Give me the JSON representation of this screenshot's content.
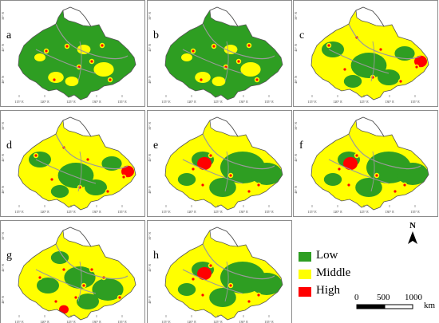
{
  "panels": [
    {
      "letter": "a",
      "scheme": "low"
    },
    {
      "letter": "b",
      "scheme": "low"
    },
    {
      "letter": "c",
      "scheme": "mid"
    },
    {
      "letter": "d",
      "scheme": "mid"
    },
    {
      "letter": "e",
      "scheme": "mix"
    },
    {
      "letter": "f",
      "scheme": "mix"
    },
    {
      "letter": "g",
      "scheme": "mixhigh"
    },
    {
      "letter": "h",
      "scheme": "mix"
    }
  ],
  "axes": {
    "lon_ticks": [
      "115° E",
      "120° E",
      "125° E",
      "130° E",
      "135° E"
    ],
    "lat_ticks": [
      "50° N",
      "45° N",
      "40° N"
    ]
  },
  "legend": {
    "items": [
      {
        "label": "Low",
        "color": "#2e9e22"
      },
      {
        "label": "Middle",
        "color": "#ffff00"
      },
      {
        "label": "High",
        "color": "#ff0000"
      }
    ]
  },
  "north_arrow": {
    "label": "N"
  },
  "scale_bar": {
    "ticks": [
      "0",
      "500",
      "1000"
    ],
    "unit": "km"
  },
  "colors": {
    "low": "#2e9e22",
    "middle": "#ffff00",
    "high": "#ff0000",
    "outside": "#ffffff",
    "river": "#9a9a9a",
    "border": "#555555"
  }
}
